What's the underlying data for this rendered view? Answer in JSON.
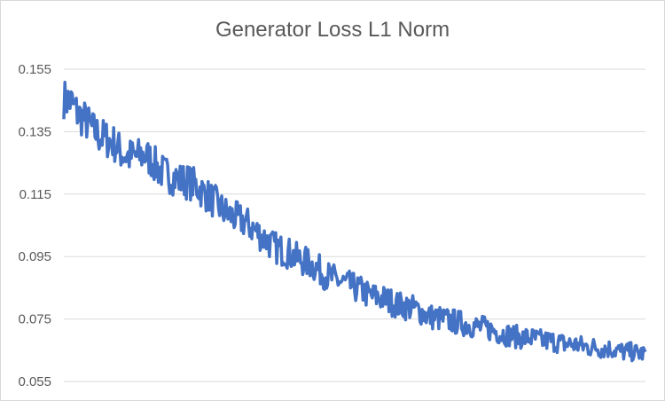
{
  "chart_data": {
    "type": "line",
    "title": "Generator Loss L1 Norm",
    "xlabel": "",
    "ylabel": "",
    "ylim": [
      0.055,
      0.155
    ],
    "y_ticks": [
      "0.155",
      "0.135",
      "0.115",
      "0.095",
      "0.075",
      "0.055"
    ],
    "grid": true,
    "legend": "none",
    "series_color": "#4472C4",
    "series": [
      {
        "x": [
          0,
          10,
          20,
          30,
          40,
          50,
          60,
          70,
          80,
          90,
          100,
          110,
          120,
          130,
          140,
          150,
          160,
          170,
          180,
          190,
          200,
          210,
          220,
          230,
          240,
          250,
          260,
          270,
          280,
          290,
          300,
          310,
          320,
          330,
          340,
          350,
          360,
          370,
          380,
          390,
          400,
          410,
          420,
          430,
          440,
          450,
          460,
          470,
          480,
          490,
          500,
          510,
          520,
          530,
          540,
          550,
          560,
          570,
          580,
          590,
          600,
          610,
          620,
          630,
          640,
          650,
          660,
          670,
          680,
          690,
          700,
          710,
          720,
          730,
          740,
          750,
          760,
          770,
          780,
          790,
          800
        ],
        "values": [
          0.1455,
          0.1445,
          0.1405,
          0.1385,
          0.1355,
          0.1335,
          0.1325,
          0.131,
          0.128,
          0.127,
          0.127,
          0.1275,
          0.126,
          0.123,
          0.1215,
          0.1205,
          0.1195,
          0.119,
          0.118,
          0.116,
          0.114,
          0.112,
          0.1095,
          0.108,
          0.107,
          0.106,
          0.104,
          0.102,
          0.1,
          0.098,
          0.097,
          0.096,
          0.0945,
          0.0935,
          0.0925,
          0.091,
          0.089,
          0.088,
          0.087,
          0.086,
          0.085,
          0.084,
          0.0825,
          0.082,
          0.0815,
          0.0805,
          0.0795,
          0.079,
          0.0785,
          0.0775,
          0.076,
          0.0755,
          0.075,
          0.0745,
          0.074,
          0.0735,
          0.073,
          0.0725,
          0.072,
          0.0715,
          0.0705,
          0.07,
          0.0695,
          0.069,
          0.069,
          0.0685,
          0.068,
          0.068,
          0.0675,
          0.067,
          0.067,
          0.0665,
          0.066,
          0.066,
          0.0655,
          0.0655,
          0.065,
          0.0645,
          0.0645,
          0.064,
          0.064
        ]
      }
    ]
  }
}
